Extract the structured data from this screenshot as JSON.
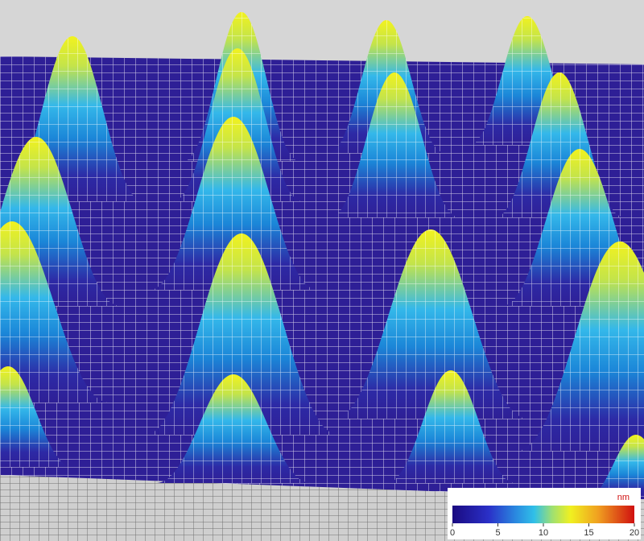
{
  "colorbar": {
    "unit": "nm",
    "ticks": [
      0,
      5,
      10,
      15,
      20
    ]
  }
}
